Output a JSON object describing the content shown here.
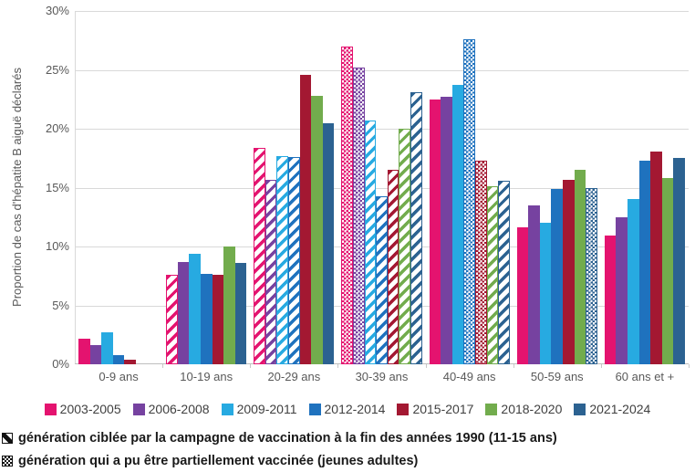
{
  "chart_data": {
    "type": "bar",
    "title": "",
    "ylabel": "Proportion de cas d'hépatite B aiguë déclarés",
    "ylim": [
      0,
      30
    ],
    "yticks": [
      0,
      5,
      10,
      15,
      20,
      25,
      30
    ],
    "ytick_suffix": "%",
    "grid": true,
    "legend_position": "bottom",
    "categories": [
      "0-9 ans",
      "10-19 ans",
      "20-29 ans",
      "30-39 ans",
      "40-49 ans",
      "50-59 ans",
      "60 ans et +"
    ],
    "series": [
      {
        "name": "2003-2005",
        "color": "#E4136F",
        "values": [
          2.2,
          7.6,
          18.4,
          27.0,
          22.5,
          11.6,
          10.9
        ],
        "patterns": [
          "solid",
          "diag",
          "diag",
          "dots",
          "solid",
          "solid",
          "solid"
        ]
      },
      {
        "name": "2006-2008",
        "color": "#7642A0",
        "values": [
          1.6,
          8.7,
          15.7,
          25.2,
          22.7,
          13.5,
          12.5
        ],
        "patterns": [
          "solid",
          "solid",
          "diag",
          "dots",
          "solid",
          "solid",
          "solid"
        ]
      },
      {
        "name": "2009-2011",
        "color": "#27AAE1",
        "values": [
          2.7,
          9.4,
          17.7,
          20.7,
          23.7,
          12.0,
          14.0
        ],
        "patterns": [
          "solid",
          "solid",
          "diag",
          "diag",
          "solid",
          "solid",
          "solid"
        ]
      },
      {
        "name": "2012-2014",
        "color": "#1F72BE",
        "values": [
          0.8,
          7.7,
          17.6,
          14.3,
          27.6,
          14.9,
          17.3
        ],
        "patterns": [
          "solid",
          "solid",
          "diag",
          "diag",
          "dots",
          "solid",
          "solid"
        ]
      },
      {
        "name": "2015-2017",
        "color": "#A31832",
        "values": [
          0.4,
          7.6,
          24.6,
          16.5,
          17.3,
          15.7,
          18.1
        ],
        "patterns": [
          "solid",
          "solid",
          "solid",
          "diag",
          "dots",
          "solid",
          "solid"
        ]
      },
      {
        "name": "2018-2020",
        "color": "#72AC4D",
        "values": [
          0,
          10.0,
          22.8,
          20.0,
          15.1,
          16.5,
          15.8
        ],
        "patterns": [
          "solid",
          "solid",
          "solid",
          "diag",
          "diag",
          "solid",
          "solid"
        ]
      },
      {
        "name": "2021-2024",
        "color": "#2C6291",
        "values": [
          0,
          8.6,
          20.5,
          23.1,
          15.6,
          15.0,
          17.5
        ],
        "patterns": [
          "solid",
          "solid",
          "solid",
          "diag",
          "diag",
          "dots",
          "solid"
        ]
      }
    ]
  },
  "footnotes": [
    {
      "icon": "diagonal-hatch",
      "text": "génération ciblée par la campagne de vaccination à la fin des années 1990 (11-15 ans)"
    },
    {
      "icon": "cross-hatch",
      "text": "génération qui a pu être partiellement vaccinée (jeunes adultes)"
    }
  ]
}
